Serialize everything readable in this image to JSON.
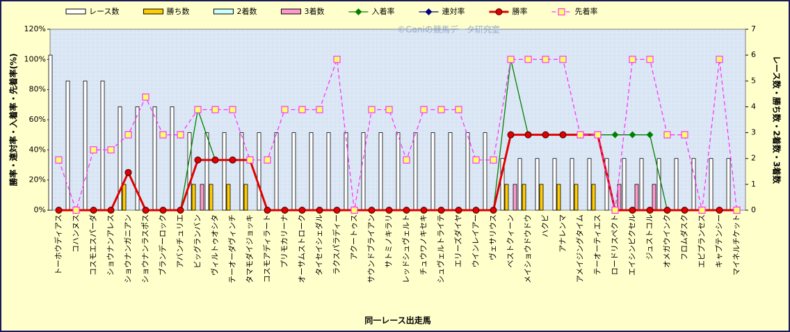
{
  "chart_data": {
    "type": "combo",
    "annotation": "©Ganiの競馬データ研究室",
    "x_label": "同一レース出走馬",
    "y_label": "勝率・連対率・入着率・先着率(%)",
    "y2_label": "レース数・勝ち数・2着数・3着数",
    "categories": [
      "トーホウディアス",
      "コハンヌス",
      "コスモエスパーダ",
      "ショウナンアレス",
      "ショウナンガニアン",
      "ショウナンラスポス",
      "ブランデーロック",
      "アバンチュリエ",
      "ビッグランバン",
      "ヴィルトゥオシタ",
      "テーオーダヴィンチ",
      "タマモダイジョッキ",
      "コスモアディラート",
      "プリモカリーナ",
      "オーサムストローク",
      "タイセイシェダル",
      "ラクスパラディー",
      "アクートゥス",
      "サウンドブライアン",
      "サトミノキラリ",
      "レッドシュヴェルト",
      "チュウワノキセキ",
      "シュヴェルトライテ",
      "エリーズダイヤ",
      "ウインレイアー",
      "ヴェサリウス",
      "ベストクィーン",
      "メイショウドウドウ",
      "ハクビ",
      "アナレンマ",
      "アメイジングタイム",
      "テーオーティエス",
      "ロードリスペクト",
      "エイシンピクセル",
      "ジュストコル",
      "オメガウインク",
      "フロムダスク",
      "エピプランセス",
      "キャプテンシー",
      "マイネルチケット"
    ],
    "ylim": [
      0,
      120
    ],
    "yticks": [
      {
        "value": 0,
        "label": "0%"
      },
      {
        "value": 20,
        "label": "20%"
      },
      {
        "value": 40,
        "label": "40%"
      },
      {
        "value": 60,
        "label": "60%"
      },
      {
        "value": 80,
        "label": "80%"
      },
      {
        "value": 100,
        "label": "100%"
      },
      {
        "value": 120,
        "label": "120%"
      }
    ],
    "y2lim": [
      0,
      7
    ],
    "y2ticks": [
      0,
      1,
      2,
      3,
      4,
      5,
      6,
      7
    ],
    "series": [
      {
        "name": "レース数",
        "kind": "bar",
        "axis": "y2",
        "color": "#ffffff",
        "values": [
          6,
          5,
          5,
          5,
          4,
          4,
          4,
          4,
          3,
          3,
          3,
          3,
          3,
          3,
          3,
          3,
          3,
          3,
          3,
          3,
          3,
          3,
          3,
          3,
          3,
          3,
          2,
          2,
          2,
          2,
          2,
          2,
          2,
          2,
          2,
          2,
          2,
          2,
          2,
          2
        ]
      },
      {
        "name": "勝ち数",
        "kind": "bar",
        "axis": "y2",
        "color": "#ffcc00",
        "values": [
          0,
          0,
          0,
          0,
          1,
          0,
          0,
          0,
          1,
          1,
          1,
          1,
          0,
          0,
          0,
          0,
          0,
          0,
          0,
          0,
          0,
          0,
          0,
          0,
          0,
          0,
          1,
          1,
          1,
          1,
          1,
          1,
          0,
          0,
          0,
          0,
          0,
          0,
          0,
          0
        ]
      },
      {
        "name": "2着数",
        "kind": "bar",
        "axis": "y2",
        "color": "#ccffff",
        "values": [
          0,
          0,
          0,
          0,
          0,
          0,
          0,
          0,
          0,
          0,
          0,
          0,
          0,
          0,
          0,
          0,
          0,
          0,
          0,
          0,
          0,
          0,
          0,
          0,
          0,
          0,
          0,
          0,
          0,
          0,
          0,
          0,
          0,
          0,
          0,
          0,
          0,
          0,
          0,
          0
        ]
      },
      {
        "name": "3着数",
        "kind": "bar",
        "axis": "y2",
        "color": "#ff99cc",
        "values": [
          0,
          0,
          0,
          0,
          0,
          0,
          0,
          0,
          1,
          0,
          0,
          0,
          0,
          0,
          0,
          0,
          0,
          0,
          0,
          0,
          0,
          0,
          0,
          0,
          0,
          0,
          1,
          0,
          0,
          0,
          0,
          0,
          1,
          1,
          1,
          0,
          0,
          0,
          0,
          0
        ]
      },
      {
        "name": "入着率",
        "kind": "line",
        "color": "#008000",
        "marker": "diamond",
        "values": [
          0,
          0,
          0,
          0,
          25,
          0,
          0,
          0,
          66.7,
          33.3,
          33.3,
          33.3,
          0,
          0,
          0,
          0,
          0,
          0,
          0,
          0,
          0,
          0,
          0,
          0,
          0,
          0,
          100,
          50,
          50,
          50,
          50,
          50,
          50,
          50,
          50,
          0,
          0,
          0,
          0,
          0
        ]
      },
      {
        "name": "連対率",
        "kind": "line",
        "color": "#000080",
        "marker": "diamond",
        "values": [
          0,
          0,
          0,
          0,
          25,
          0,
          0,
          0,
          33.3,
          33.3,
          33.3,
          33.3,
          0,
          0,
          0,
          0,
          0,
          0,
          0,
          0,
          0,
          0,
          0,
          0,
          0,
          0,
          50,
          50,
          50,
          50,
          50,
          50,
          0,
          0,
          0,
          0,
          0,
          0,
          0,
          0
        ]
      },
      {
        "name": "勝率",
        "kind": "line",
        "color": "#e00000",
        "marker": "circle",
        "values": [
          0,
          0,
          0,
          0,
          25,
          0,
          0,
          0,
          33.3,
          33.3,
          33.3,
          33.3,
          0,
          0,
          0,
          0,
          0,
          0,
          0,
          0,
          0,
          0,
          0,
          0,
          0,
          0,
          50,
          50,
          50,
          50,
          50,
          50,
          0,
          0,
          0,
          0,
          0,
          0,
          0,
          0
        ]
      },
      {
        "name": "先着率",
        "kind": "line",
        "color": "#ff33ff",
        "marker": "square",
        "dash": true,
        "values": [
          33.3,
          0,
          40,
          40,
          50,
          75,
          50,
          50,
          66.7,
          66.7,
          66.7,
          33.3,
          33.3,
          66.7,
          66.7,
          66.7,
          100,
          0,
          66.7,
          66.7,
          33.3,
          66.7,
          66.7,
          66.7,
          33.3,
          33.3,
          100,
          100,
          100,
          100,
          50,
          50,
          0,
          100,
          100,
          50,
          50,
          0,
          100,
          0
        ]
      }
    ]
  }
}
